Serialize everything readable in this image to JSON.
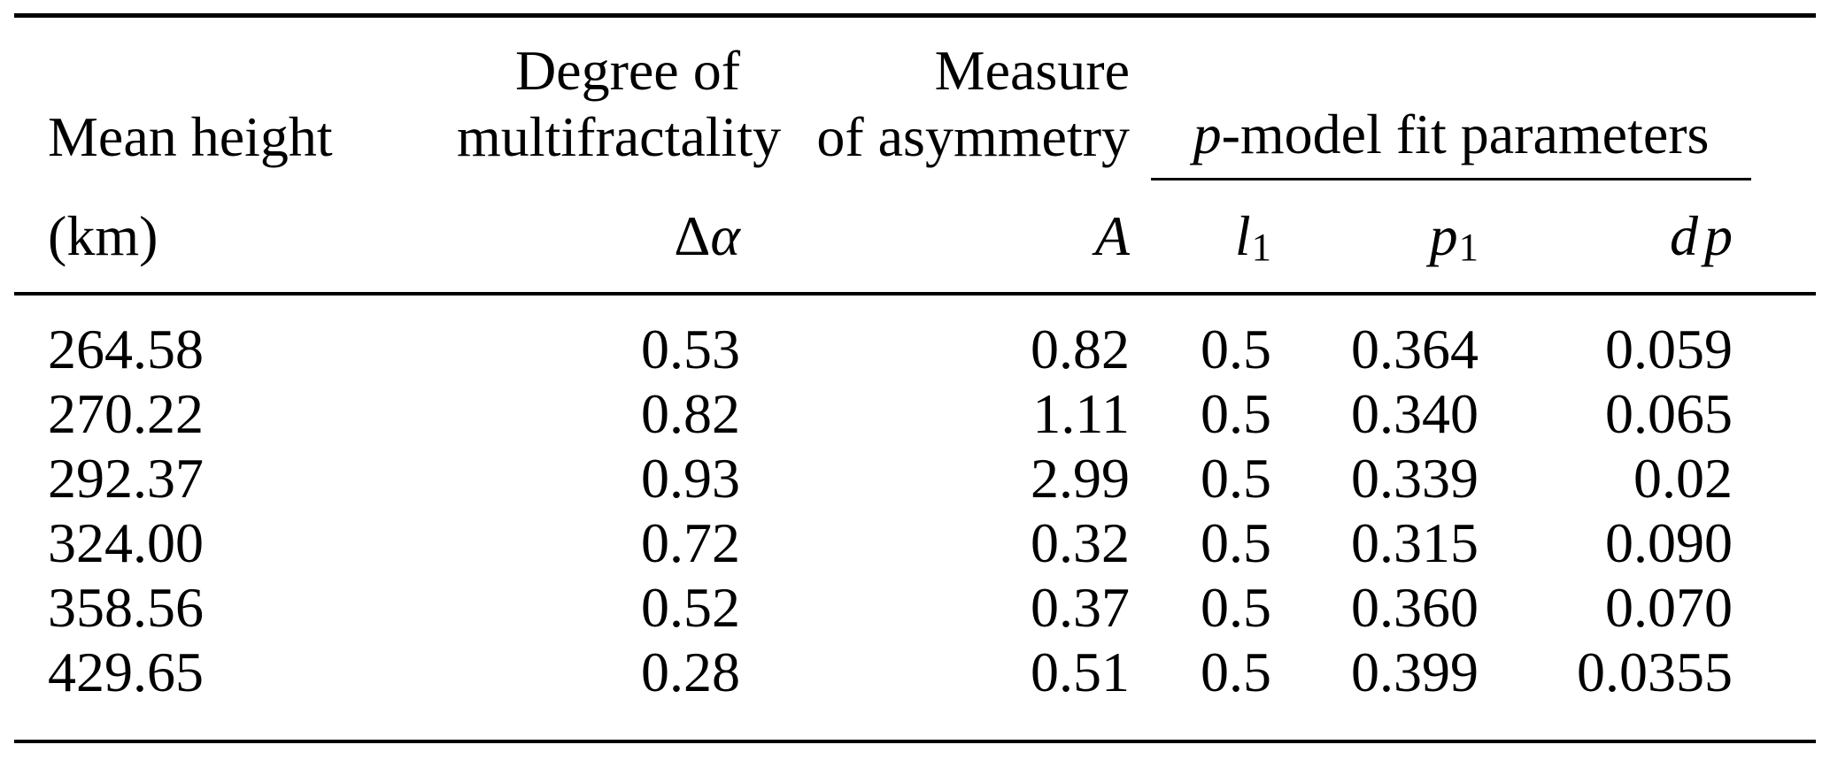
{
  "page": {
    "background": "#ffffff"
  },
  "table": {
    "text_color": "#000000",
    "rule_color": "#000000",
    "header": {
      "col1": {
        "title": "Mean height",
        "unit": "(km)"
      },
      "col2": {
        "title_line1": "Degree of",
        "title_line2": "multifractality",
        "symbol_upright": "Δ",
        "symbol_italic": "α"
      },
      "col3": {
        "title_line1": "Measure",
        "title_line2": "of asymmetry",
        "symbol": "A"
      },
      "group": {
        "symbol_italic": "p",
        "title_rest": "-model fit parameters"
      },
      "col4": {
        "symbol": "l",
        "subscript": "1"
      },
      "col5": {
        "symbol": "p",
        "subscript": "1"
      },
      "col6": {
        "symbol_d": "d",
        "symbol_p": "p"
      }
    },
    "rows": [
      [
        "264.58",
        "0.53",
        "0.82",
        "0.5",
        "0.364",
        "0.059"
      ],
      [
        "270.22",
        "0.82",
        "1.11",
        "0.5",
        "0.340",
        "0.065"
      ],
      [
        "292.37",
        "0.93",
        "2.99",
        "0.5",
        "0.339",
        "0.02"
      ],
      [
        "324.00",
        "0.72",
        "0.32",
        "0.5",
        "0.315",
        "0.090"
      ],
      [
        "358.56",
        "0.52",
        "0.37",
        "0.5",
        "0.360",
        "0.070"
      ],
      [
        "429.65",
        "0.28",
        "0.51",
        "0.5",
        "0.399",
        "0.0355"
      ]
    ]
  },
  "chart_data": {
    "type": "table",
    "columns": [
      "Mean height (km)",
      "Degree of multifractality Δα",
      "Measure of asymmetry A",
      "p-model fit parameter l1",
      "p-model fit parameter p1",
      "p-model fit parameter dp"
    ],
    "rows": [
      [
        264.58,
        0.53,
        0.82,
        0.5,
        0.364,
        0.059
      ],
      [
        270.22,
        0.82,
        1.11,
        0.5,
        0.34,
        0.065
      ],
      [
        292.37,
        0.93,
        2.99,
        0.5,
        0.339,
        0.02
      ],
      [
        324.0,
        0.72,
        0.32,
        0.5,
        0.315,
        0.09
      ],
      [
        358.56,
        0.52,
        0.37,
        0.5,
        0.36,
        0.07
      ],
      [
        429.65,
        0.28,
        0.51,
        0.5,
        0.399,
        0.0355
      ]
    ]
  }
}
